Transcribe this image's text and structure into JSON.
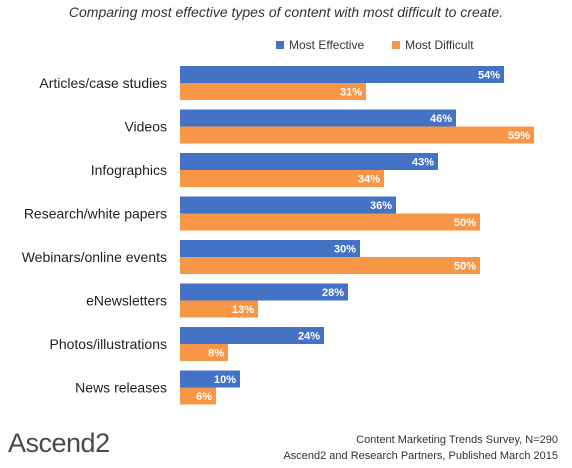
{
  "chart_data": {
    "type": "bar",
    "orientation": "horizontal",
    "title": "Comparing most effective types of content with most difficult to create.",
    "categories": [
      "Articles/case studies",
      "Videos",
      "Infographics",
      "Research/white papers",
      "Webinars/online events",
      "eNewsletters",
      "Photos/illustrations",
      "News releases"
    ],
    "series": [
      {
        "name": "Most Effective",
        "color": "#4472C4",
        "values": [
          54,
          46,
          43,
          36,
          30,
          28,
          24,
          10
        ]
      },
      {
        "name": "Most Difficult",
        "color": "#F79646",
        "values": [
          31,
          59,
          34,
          50,
          50,
          13,
          8,
          6
        ]
      }
    ],
    "value_suffix": "%",
    "xlim": [
      0,
      60
    ],
    "grid": false,
    "legend_position": "top-right"
  },
  "brand": {
    "name": "Ascend",
    "mark": "2"
  },
  "source": {
    "line1": "Content Marketing Trends Survey, N=290",
    "line2": "Ascend2 and Research Partners, Published March 2015"
  }
}
